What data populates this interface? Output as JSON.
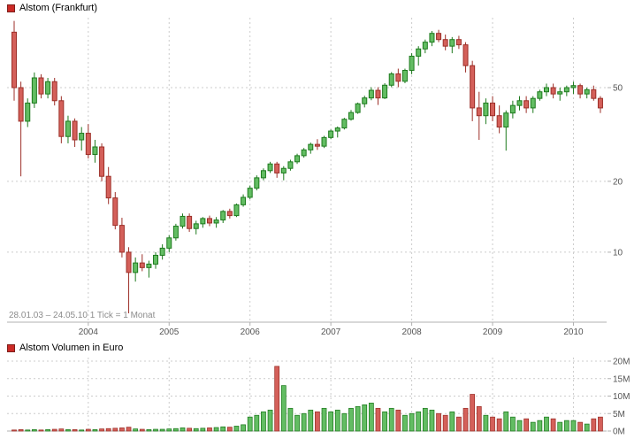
{
  "colors": {
    "up_fill": "#63bd63",
    "up_stroke": "#1d7a1d",
    "down_fill": "#d4605a",
    "down_stroke": "#9c2f28",
    "grid": "#cccccc",
    "axis_line": "#b0b0b0",
    "axis_text": "#555555",
    "legend_marker": "#cc2a26"
  },
  "chart_data": [
    {
      "type": "candlestick",
      "title": "Alstom (Frankfurt)",
      "note": "28.01.03 – 24.05.10   1 Tick = 1 Monat",
      "period_start": "28.01.03",
      "period_end": "24.05.10",
      "tick_interval": "1 Monat",
      "y_scale": "log",
      "y_axis_side": "right",
      "y_ticks": [
        50,
        20,
        10
      ],
      "y_tick_labels": [
        "50",
        "20",
        "10"
      ],
      "x_labels": [
        "2004",
        "2005",
        "2006",
        "2007",
        "2008",
        "2009",
        "2010"
      ],
      "start_month": "2003-02",
      "end_month": "2010-05",
      "ohlc": [
        [
          86,
          96,
          44,
          50
        ],
        [
          50,
          53,
          21,
          36
        ],
        [
          36,
          45,
          34,
          43
        ],
        [
          43,
          58,
          41,
          55
        ],
        [
          55,
          57,
          45,
          47
        ],
        [
          47,
          55,
          45,
          53
        ],
        [
          53,
          55,
          42,
          44
        ],
        [
          44,
          46,
          29,
          31
        ],
        [
          31,
          38,
          29,
          36
        ],
        [
          36,
          37,
          28,
          30
        ],
        [
          30,
          34,
          27,
          32
        ],
        [
          32,
          35,
          25,
          26
        ],
        [
          26,
          30,
          24,
          28
        ],
        [
          28,
          29,
          20,
          21
        ],
        [
          21,
          23,
          16,
          17
        ],
        [
          17,
          18,
          12.5,
          13
        ],
        [
          13,
          14,
          9.5,
          10
        ],
        [
          10,
          10.5,
          5.5,
          8.2
        ],
        [
          8.2,
          9.5,
          7.5,
          9
        ],
        [
          9,
          9.8,
          8.3,
          8.6
        ],
        [
          8.6,
          9.2,
          7.8,
          8.9
        ],
        [
          8.9,
          10,
          8.5,
          9.7
        ],
        [
          9.7,
          10.8,
          9.3,
          10.4
        ],
        [
          10.4,
          11.8,
          10,
          11.5
        ],
        [
          11.5,
          13.2,
          11.2,
          12.9
        ],
        [
          12.9,
          14.6,
          12.6,
          14.2
        ],
        [
          14.2,
          14.6,
          12.2,
          12.6
        ],
        [
          12.6,
          13.6,
          11.9,
          13.2
        ],
        [
          13.2,
          14.1,
          12.7,
          13.9
        ],
        [
          13.9,
          14.3,
          12.9,
          13.3
        ],
        [
          13.3,
          14.1,
          12.7,
          13.7
        ],
        [
          13.7,
          15.1,
          13.3,
          14.9
        ],
        [
          14.9,
          15.3,
          13.9,
          14.3
        ],
        [
          14.3,
          16.1,
          14.1,
          15.9
        ],
        [
          15.9,
          17.6,
          15.6,
          17.1
        ],
        [
          17.1,
          19.2,
          16.8,
          18.7
        ],
        [
          18.7,
          21.2,
          18.3,
          20.7
        ],
        [
          20.7,
          22.7,
          20.2,
          22.2
        ],
        [
          22.2,
          24.2,
          21.7,
          23.7
        ],
        [
          23.7,
          24.2,
          20.7,
          21.7
        ],
        [
          21.7,
          23.2,
          20.2,
          22.7
        ],
        [
          22.7,
          24.7,
          22.2,
          24.2
        ],
        [
          24.2,
          26.2,
          23.7,
          25.7
        ],
        [
          25.7,
          27.7,
          25.2,
          27.2
        ],
        [
          27.2,
          29.2,
          26.2,
          28.7
        ],
        [
          28.7,
          30.2,
          27.2,
          28.2
        ],
        [
          28.2,
          31.2,
          27.7,
          30.7
        ],
        [
          30.7,
          33.2,
          30.2,
          32.7
        ],
        [
          32.7,
          34.2,
          30.7,
          33.7
        ],
        [
          33.7,
          37.2,
          33.2,
          36.7
        ],
        [
          36.7,
          40.2,
          36.2,
          39.2
        ],
        [
          39.2,
          43.2,
          38.7,
          42.7
        ],
        [
          42.7,
          46.2,
          41.2,
          45.2
        ],
        [
          45.2,
          50.2,
          44.2,
          48.7
        ],
        [
          48.7,
          50.2,
          42.2,
          45.2
        ],
        [
          45.2,
          52.2,
          44.7,
          51.2
        ],
        [
          51.2,
          58.2,
          50.2,
          57.2
        ],
        [
          57.2,
          60.2,
          50.2,
          53.2
        ],
        [
          53.2,
          60.2,
          52.2,
          59.2
        ],
        [
          59.2,
          70,
          57,
          68
        ],
        [
          68,
          75,
          62,
          73
        ],
        [
          73,
          80,
          70,
          78
        ],
        [
          78,
          87,
          75,
          85
        ],
        [
          85,
          88,
          78,
          80
        ],
        [
          80,
          84,
          72,
          75
        ],
        [
          75,
          82,
          70,
          80
        ],
        [
          80,
          83,
          73,
          76
        ],
        [
          76,
          78,
          58,
          62
        ],
        [
          62,
          65,
          36,
          41
        ],
        [
          41,
          48,
          30,
          38
        ],
        [
          38,
          45,
          35,
          43
        ],
        [
          43,
          46,
          36,
          38
        ],
        [
          38,
          42,
          32,
          34
        ],
        [
          34,
          40,
          27,
          39
        ],
        [
          39,
          44,
          37,
          42
        ],
        [
          42,
          46,
          40,
          44
        ],
        [
          44,
          46,
          39,
          41
        ],
        [
          41,
          46,
          39,
          45
        ],
        [
          45,
          49,
          44,
          48
        ],
        [
          48,
          52,
          46,
          50
        ],
        [
          50,
          52,
          45,
          47
        ],
        [
          47,
          50,
          44,
          48
        ],
        [
          48,
          51,
          46,
          50
        ],
        [
          50,
          53,
          47,
          51
        ],
        [
          51,
          52,
          45,
          47
        ],
        [
          47,
          50,
          45,
          49
        ],
        [
          49,
          51,
          44,
          45
        ],
        [
          45,
          46,
          39,
          41
        ]
      ]
    },
    {
      "type": "bar",
      "title": "Alstom Volumen in Euro",
      "y_axis_side": "right",
      "y_ticks_millions": [
        20,
        15,
        10,
        5,
        0
      ],
      "y_tick_labels": [
        "20M",
        "15M",
        "10M",
        "5M",
        "0M"
      ],
      "unit": "EUR",
      "values_millions": [
        0.3,
        0.4,
        0.3,
        0.4,
        0.3,
        0.4,
        0.5,
        0.6,
        0.4,
        0.4,
        0.3,
        0.5,
        0.4,
        0.6,
        0.7,
        0.8,
        0.9,
        1.1,
        0.6,
        0.5,
        0.4,
        0.5,
        0.5,
        0.6,
        0.7,
        0.9,
        0.8,
        0.7,
        0.8,
        0.9,
        1.0,
        1.2,
        1.1,
        1.4,
        1.8,
        4.0,
        4.5,
        5.5,
        6.0,
        18.5,
        13.0,
        6.5,
        4.5,
        5.0,
        6.0,
        5.5,
        6.5,
        5.5,
        6.0,
        5.0,
        6.5,
        7.0,
        7.5,
        8.0,
        6.5,
        5.5,
        6.5,
        6.0,
        4.5,
        5.0,
        5.5,
        6.5,
        6.0,
        5.0,
        4.5,
        5.5,
        4.0,
        6.5,
        10.5,
        7.0,
        4.5,
        4.0,
        3.5,
        5.5,
        4.0,
        3.0,
        3.5,
        2.5,
        3.0,
        4.0,
        3.5,
        2.5,
        3.0,
        3.0,
        2.5,
        2.0,
        3.5,
        4.0
      ]
    }
  ]
}
